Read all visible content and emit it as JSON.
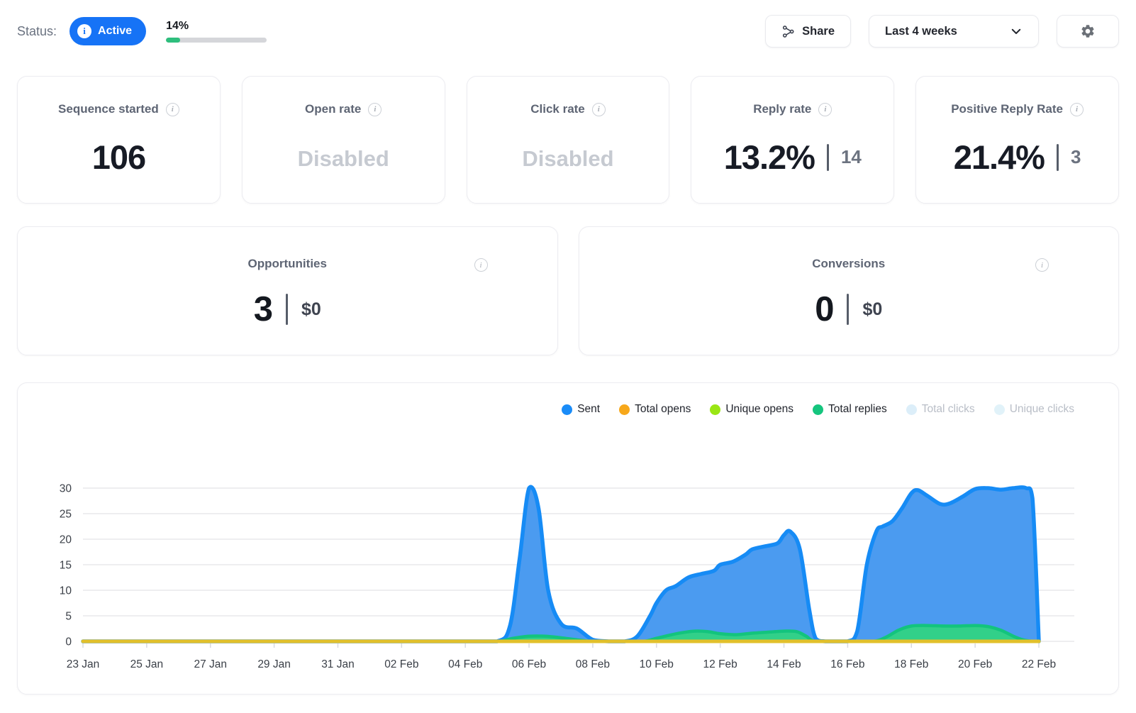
{
  "header": {
    "status_label": "Status:",
    "status_badge": "Active",
    "progress_percent": "14%",
    "progress_value": 14,
    "share_label": "Share",
    "date_range": "Last 4 weeks"
  },
  "colors": {
    "accent_blue": "#1673f6",
    "progress_green": "#2ebe7d"
  },
  "stat_cards": [
    {
      "title": "Sequence started",
      "value": "106"
    },
    {
      "title": "Open rate",
      "value": "Disabled",
      "disabled": true
    },
    {
      "title": "Click rate",
      "value": "Disabled",
      "disabled": true
    },
    {
      "title": "Reply rate",
      "value": "13.2%",
      "secondary": "14"
    },
    {
      "title": "Positive Reply Rate",
      "value": "21.4%",
      "secondary": "3"
    }
  ],
  "wide_cards": [
    {
      "title": "Opportunities",
      "value": "3",
      "secondary": "$0"
    },
    {
      "title": "Conversions",
      "value": "0",
      "secondary": "$0"
    }
  ],
  "chart_data": {
    "type": "area",
    "x_unit": "day (0 = 23 Jan, 30 = 22 Feb)",
    "x_range_days": [
      0,
      30
    ],
    "x_tick_days": [
      0,
      2,
      4,
      6,
      8,
      10,
      12,
      14,
      16,
      18,
      20,
      22,
      24,
      26,
      28,
      30
    ],
    "x_tick_labels": [
      "23 Jan",
      "25 Jan",
      "27 Jan",
      "29 Jan",
      "31 Jan",
      "02 Feb",
      "04 Feb",
      "06 Feb",
      "08 Feb",
      "10 Feb",
      "12 Feb",
      "14 Feb",
      "16 Feb",
      "18 Feb",
      "20 Feb",
      "22 Feb"
    ],
    "y_ticks": [
      0,
      5,
      10,
      15,
      20,
      25,
      30
    ],
    "ylim": [
      0,
      30
    ],
    "grid": true,
    "legend_position": "top-right",
    "legend": [
      {
        "label": "Sent",
        "color": "#1a8cf8",
        "muted": false
      },
      {
        "label": "Total opens",
        "color": "#f7a81b",
        "muted": false
      },
      {
        "label": "Unique opens",
        "color": "#9ae614",
        "muted": false
      },
      {
        "label": "Total replies",
        "color": "#15c57e",
        "muted": false
      },
      {
        "label": "Total clicks",
        "color": "#dceef9",
        "muted": true
      },
      {
        "label": "Unique clicks",
        "color": "#e1f2f9",
        "muted": true
      }
    ],
    "series": [
      {
        "name": "Sent",
        "stroke": "#168bf5",
        "fill": "#4b9bf0",
        "points": [
          [
            0,
            0
          ],
          [
            2,
            0
          ],
          [
            4,
            0
          ],
          [
            6,
            0
          ],
          [
            8,
            0
          ],
          [
            10,
            0
          ],
          [
            12,
            0
          ],
          [
            13,
            0
          ],
          [
            13.4,
            3
          ],
          [
            13.7,
            16
          ],
          [
            14,
            30
          ],
          [
            14.3,
            26
          ],
          [
            14.6,
            10
          ],
          [
            15,
            3.5
          ],
          [
            15.5,
            2.5
          ],
          [
            16,
            0.3
          ],
          [
            16.5,
            0
          ],
          [
            17,
            0
          ],
          [
            17.4,
            1
          ],
          [
            17.8,
            5
          ],
          [
            18,
            7.5
          ],
          [
            18.3,
            10
          ],
          [
            18.6,
            10.8
          ],
          [
            19,
            12.5
          ],
          [
            19.4,
            13.2
          ],
          [
            19.8,
            13.8
          ],
          [
            20,
            15
          ],
          [
            20.4,
            15.6
          ],
          [
            20.8,
            17
          ],
          [
            21,
            18
          ],
          [
            21.4,
            18.6
          ],
          [
            21.8,
            19.2
          ],
          [
            22,
            20.8
          ],
          [
            22.2,
            21.5
          ],
          [
            22.5,
            18
          ],
          [
            22.8,
            6
          ],
          [
            23,
            0.5
          ],
          [
            23.3,
            0
          ],
          [
            24,
            0
          ],
          [
            24.3,
            2
          ],
          [
            24.6,
            15
          ],
          [
            24.9,
            21.5
          ],
          [
            25.1,
            22.5
          ],
          [
            25.4,
            23.5
          ],
          [
            25.7,
            26
          ],
          [
            26,
            29
          ],
          [
            26.2,
            29.6
          ],
          [
            26.5,
            28.5
          ],
          [
            26.9,
            26.9
          ],
          [
            27.2,
            27
          ],
          [
            27.6,
            28.3
          ],
          [
            28,
            29.8
          ],
          [
            28.4,
            30
          ],
          [
            28.8,
            29.7
          ],
          [
            29.2,
            30
          ],
          [
            29.6,
            30
          ],
          [
            29.8,
            28
          ],
          [
            30,
            0
          ]
        ]
      },
      {
        "name": "Total replies",
        "stroke": "#13c47d",
        "fill": "#32d089",
        "points": [
          [
            0,
            0
          ],
          [
            12,
            0
          ],
          [
            13,
            0
          ],
          [
            13.5,
            0.6
          ],
          [
            14,
            1
          ],
          [
            14.5,
            1
          ],
          [
            15,
            0.7
          ],
          [
            15.5,
            0.3
          ],
          [
            16,
            0
          ],
          [
            17,
            0
          ],
          [
            17.6,
            0
          ],
          [
            18,
            0.6
          ],
          [
            18.4,
            1.2
          ],
          [
            18.8,
            1.7
          ],
          [
            19.2,
            2
          ],
          [
            19.6,
            1.9
          ],
          [
            20,
            1.5
          ],
          [
            20.5,
            1.3
          ],
          [
            21,
            1.6
          ],
          [
            21.5,
            1.8
          ],
          [
            22,
            2
          ],
          [
            22.4,
            1.9
          ],
          [
            22.7,
            1
          ],
          [
            23,
            0
          ],
          [
            24,
            0
          ],
          [
            24.8,
            0
          ],
          [
            25.2,
            0.8
          ],
          [
            25.6,
            2.2
          ],
          [
            26,
            3
          ],
          [
            26.5,
            3.1
          ],
          [
            27,
            3
          ],
          [
            27.5,
            3
          ],
          [
            28,
            3.1
          ],
          [
            28.4,
            2.9
          ],
          [
            28.8,
            2.2
          ],
          [
            29.2,
            1
          ],
          [
            29.5,
            0.3
          ],
          [
            29.8,
            0
          ],
          [
            30,
            0
          ]
        ]
      },
      {
        "name": "Unique opens",
        "stroke": "#9fe51a",
        "fill": null,
        "points": [
          [
            0,
            0
          ],
          [
            30,
            0
          ]
        ]
      },
      {
        "name": "Total opens",
        "stroke": "#e2c02b",
        "fill": null,
        "points": [
          [
            0,
            0
          ],
          [
            30,
            0
          ]
        ]
      }
    ],
    "draw_order": [
      "Sent",
      "Total replies",
      "Unique opens",
      "Total opens"
    ]
  }
}
